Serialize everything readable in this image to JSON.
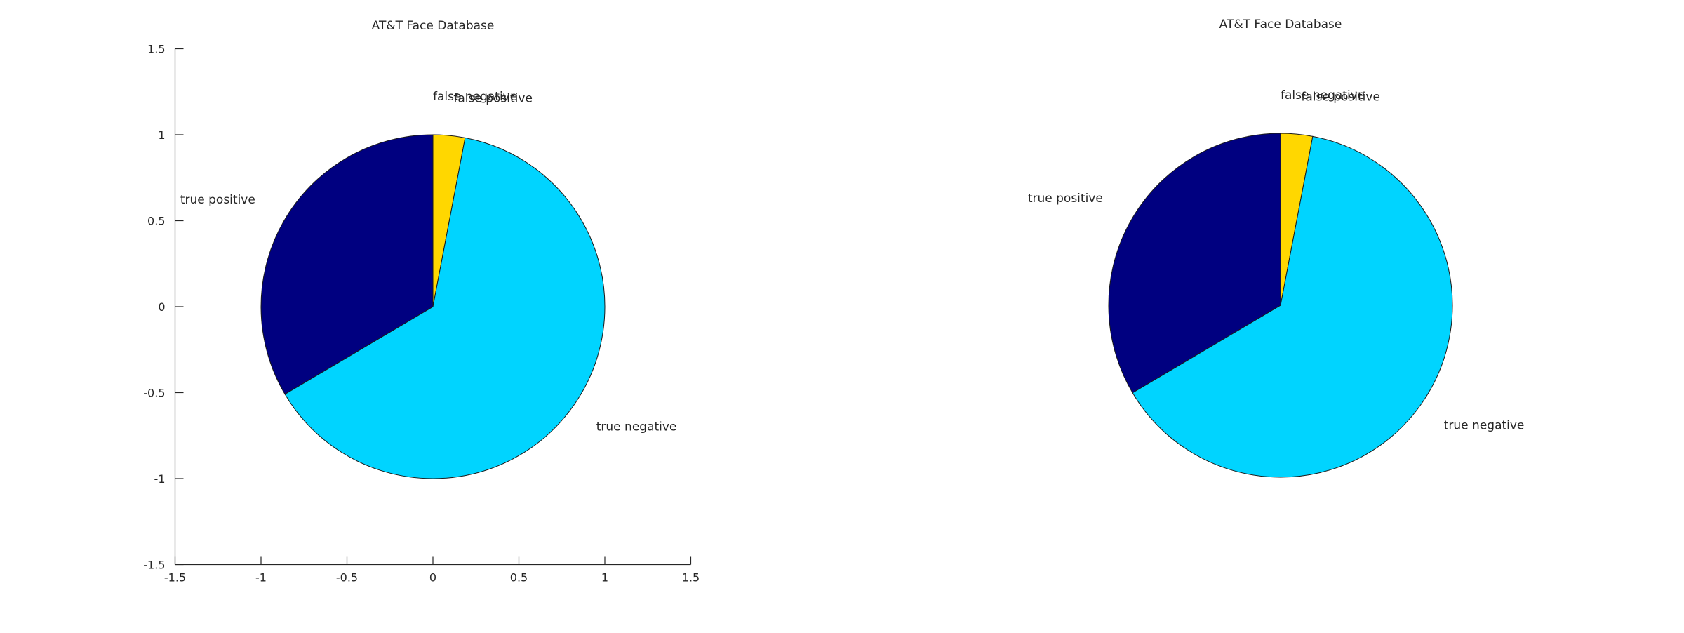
{
  "chart_data": [
    {
      "type": "pie",
      "title": "AT&T Face Database",
      "categories": [
        "false negative",
        "false positive",
        "true negative",
        "true positive"
      ],
      "values": [
        0.0,
        3.0,
        63.5,
        33.5
      ],
      "colors": [
        "#FFFF00",
        "#FFD700",
        "#00D4FF",
        "#000080"
      ],
      "start_angle_deg": 90,
      "direction": "clockwise",
      "axes_visible": true,
      "xlim": [
        -1.5,
        1.5
      ],
      "ylim": [
        -1.5,
        1.5
      ],
      "xticks": [
        "-1.5",
        "-1",
        "-0.5",
        "0",
        "0.5",
        "1",
        "1.5"
      ],
      "yticks": [
        "1.5",
        "1",
        "0.5",
        "0",
        "-0.5",
        "-1",
        "-1.5"
      ],
      "legend": "none"
    },
    {
      "type": "pie",
      "title": "AT&T Face Database",
      "categories": [
        "false negative",
        "false positive",
        "true negative",
        "true positive"
      ],
      "values": [
        0.0,
        3.0,
        63.5,
        33.5
      ],
      "colors": [
        "#FFFF00",
        "#FFD700",
        "#00D4FF",
        "#000080"
      ],
      "start_angle_deg": 90,
      "direction": "clockwise",
      "axes_visible": false,
      "xlim": [
        -1.5,
        1.5
      ],
      "ylim": [
        -1.5,
        1.5
      ],
      "legend": "none"
    }
  ]
}
